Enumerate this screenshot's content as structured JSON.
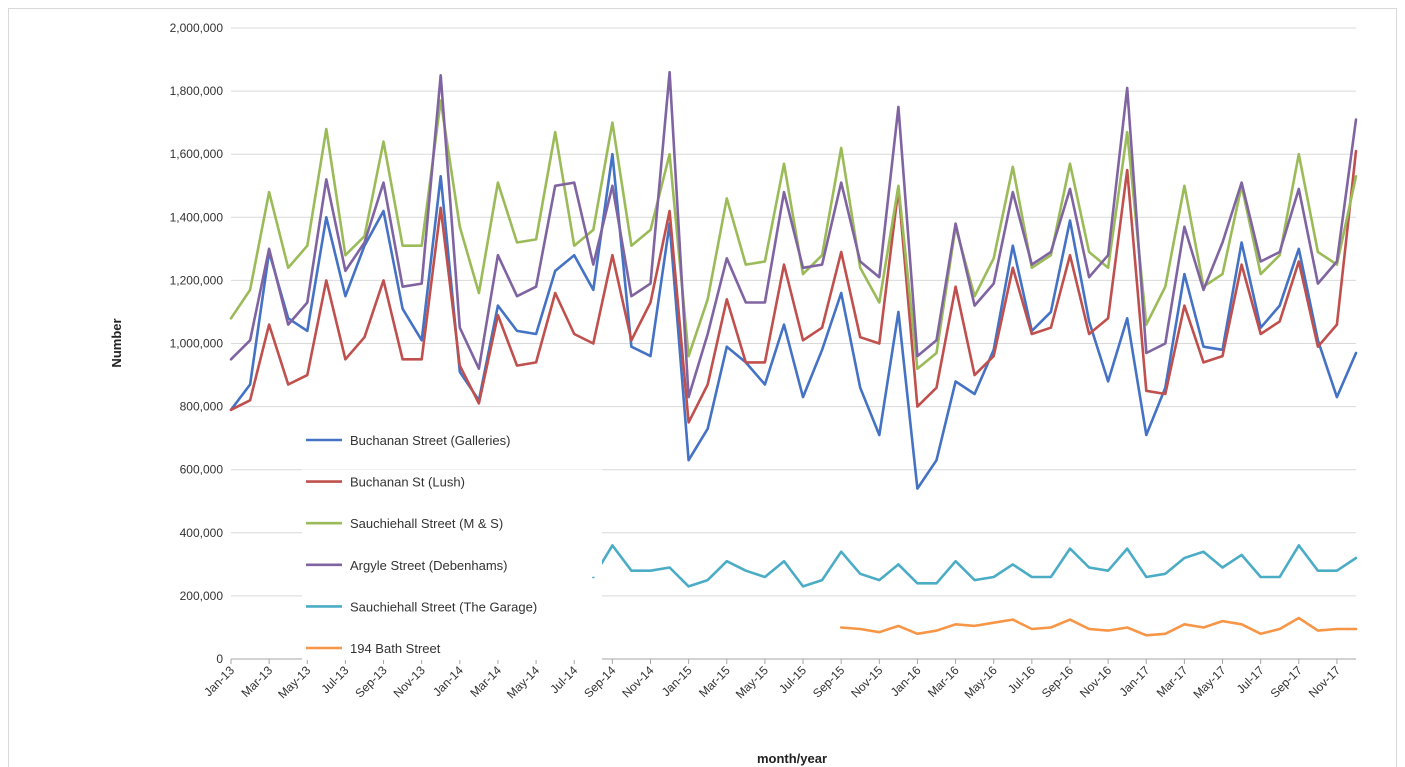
{
  "chart_data": {
    "type": "line",
    "title": "",
    "xlabel": "month/year",
    "ylabel": "Number",
    "ylim": [
      0,
      2000000
    ],
    "yticks": [
      "0",
      "200,000",
      "400,000",
      "600,000",
      "800,000",
      "1,000,000",
      "1,200,000",
      "1,400,000",
      "1,600,000",
      "1,800,000",
      "2,000,000"
    ],
    "categories": [
      "Jan-13",
      "Feb-13",
      "Mar-13",
      "Apr-13",
      "May-13",
      "Jun-13",
      "Jul-13",
      "Aug-13",
      "Sep-13",
      "Oct-13",
      "Nov-13",
      "Dec-13",
      "Jan-14",
      "Feb-14",
      "Mar-14",
      "Apr-14",
      "May-14",
      "Jun-14",
      "Jul-14",
      "Aug-14",
      "Sep-14",
      "Oct-14",
      "Nov-14",
      "Dec-14",
      "Jan-15",
      "Feb-15",
      "Mar-15",
      "Apr-15",
      "May-15",
      "Jun-15",
      "Jul-15",
      "Aug-15",
      "Sep-15",
      "Oct-15",
      "Nov-15",
      "Dec-15",
      "Jan-16",
      "Feb-16",
      "Mar-16",
      "Apr-16",
      "May-16",
      "Jun-16",
      "Jul-16",
      "Aug-16",
      "Sep-16",
      "Oct-16",
      "Nov-16",
      "Dec-16",
      "Jan-17",
      "Feb-17",
      "Mar-17",
      "Apr-17",
      "May-17",
      "Jun-17",
      "Jul-17",
      "Aug-17",
      "Sep-17",
      "Oct-17",
      "Nov-17",
      "Dec-17"
    ],
    "tick_labels_shown": [
      "Jan-13",
      "Mar-13",
      "May-13",
      "Jul-13",
      "Sep-13",
      "Nov-13",
      "Jan-14",
      "Mar-14",
      "May-14",
      "Jul-14",
      "Sep-14",
      "Nov-14",
      "Jan-15",
      "Mar-15",
      "May-15",
      "Jul-15",
      "Sep-15",
      "Nov-15",
      "Jan-16",
      "Mar-16",
      "May-16",
      "Jul-16",
      "Sep-16",
      "Nov-16",
      "Jan-17",
      "Mar-17",
      "May-17",
      "Jul-17",
      "Sep-17",
      "Nov-17"
    ],
    "grid": true,
    "legend_position": "inside-lower-left",
    "series": [
      {
        "name": "Buchanan Street (Galleries)",
        "color": "#4472c4",
        "values": [
          790000,
          870000,
          1290000,
          1080000,
          1040000,
          1400000,
          1150000,
          1310000,
          1420000,
          1110000,
          1010000,
          1530000,
          910000,
          820000,
          1120000,
          1040000,
          1030000,
          1230000,
          1280000,
          1170000,
          1600000,
          990000,
          960000,
          1380000,
          630000,
          730000,
          990000,
          940000,
          870000,
          1060000,
          830000,
          980000,
          1160000,
          860000,
          710000,
          1100000,
          540000,
          630000,
          880000,
          840000,
          980000,
          1310000,
          1040000,
          1100000,
          1390000,
          1070000,
          880000,
          1080000,
          710000,
          860000,
          1220000,
          990000,
          980000,
          1320000,
          1050000,
          1120000,
          1300000,
          1010000,
          830000,
          970000
        ]
      },
      {
        "name": "Buchanan St (Lush)",
        "color": "#c0504d",
        "values": [
          790000,
          820000,
          1060000,
          870000,
          900000,
          1200000,
          950000,
          1020000,
          1200000,
          950000,
          950000,
          1430000,
          930000,
          810000,
          1090000,
          930000,
          940000,
          1160000,
          1030000,
          1000000,
          1280000,
          1010000,
          1130000,
          1420000,
          750000,
          870000,
          1140000,
          940000,
          940000,
          1250000,
          1010000,
          1050000,
          1290000,
          1020000,
          1000000,
          1490000,
          800000,
          860000,
          1180000,
          900000,
          960000,
          1240000,
          1030000,
          1050000,
          1280000,
          1030000,
          1080000,
          1550000,
          850000,
          840000,
          1120000,
          940000,
          960000,
          1250000,
          1030000,
          1070000,
          1260000,
          990000,
          1060000,
          1610000
        ]
      },
      {
        "name": "Sauchiehall Street (M & S)",
        "color": "#9bbb59",
        "values": [
          1080000,
          1170000,
          1480000,
          1240000,
          1310000,
          1680000,
          1280000,
          1340000,
          1640000,
          1310000,
          1310000,
          1770000,
          1370000,
          1160000,
          1510000,
          1320000,
          1330000,
          1670000,
          1310000,
          1360000,
          1700000,
          1310000,
          1360000,
          1600000,
          960000,
          1140000,
          1460000,
          1250000,
          1260000,
          1570000,
          1220000,
          1280000,
          1620000,
          1240000,
          1130000,
          1500000,
          920000,
          970000,
          1370000,
          1150000,
          1270000,
          1560000,
          1240000,
          1280000,
          1570000,
          1290000,
          1240000,
          1670000,
          1060000,
          1180000,
          1500000,
          1180000,
          1220000,
          1500000,
          1220000,
          1280000,
          1600000,
          1290000,
          1250000,
          1530000
        ]
      },
      {
        "name": "Argyle Street (Debenhams)",
        "color": "#8064a2",
        "values": [
          950000,
          1010000,
          1300000,
          1060000,
          1130000,
          1520000,
          1230000,
          1320000,
          1510000,
          1180000,
          1190000,
          1850000,
          1050000,
          920000,
          1280000,
          1150000,
          1180000,
          1500000,
          1510000,
          1250000,
          1500000,
          1150000,
          1190000,
          1860000,
          830000,
          1030000,
          1270000,
          1130000,
          1130000,
          1480000,
          1240000,
          1250000,
          1510000,
          1260000,
          1210000,
          1750000,
          960000,
          1010000,
          1380000,
          1120000,
          1190000,
          1480000,
          1250000,
          1290000,
          1490000,
          1210000,
          1280000,
          1810000,
          970000,
          1000000,
          1370000,
          1170000,
          1320000,
          1510000,
          1260000,
          1290000,
          1490000,
          1190000,
          1260000,
          1710000
        ]
      },
      {
        "name": "Sauchiehall Street (The Garage)",
        "color": "#4bacc6",
        "values": [
          null,
          null,
          null,
          null,
          null,
          null,
          null,
          null,
          null,
          null,
          null,
          null,
          null,
          null,
          null,
          null,
          null,
          null,
          null,
          260000,
          360000,
          280000,
          280000,
          290000,
          230000,
          250000,
          310000,
          280000,
          260000,
          310000,
          230000,
          250000,
          340000,
          270000,
          250000,
          300000,
          240000,
          240000,
          310000,
          250000,
          260000,
          300000,
          260000,
          260000,
          350000,
          290000,
          280000,
          350000,
          260000,
          270000,
          320000,
          340000,
          290000,
          330000,
          260000,
          260000,
          360000,
          280000,
          280000,
          320000
        ]
      },
      {
        "name": "194 Bath Street",
        "color": "#f79646",
        "values": [
          null,
          null,
          null,
          null,
          null,
          null,
          null,
          null,
          null,
          null,
          null,
          null,
          null,
          null,
          null,
          null,
          null,
          null,
          null,
          null,
          null,
          null,
          null,
          null,
          null,
          null,
          null,
          null,
          null,
          null,
          null,
          null,
          100000,
          95000,
          85000,
          105000,
          80000,
          90000,
          110000,
          105000,
          115000,
          125000,
          95000,
          100000,
          125000,
          95000,
          90000,
          100000,
          75000,
          80000,
          110000,
          100000,
          120000,
          110000,
          80000,
          95000,
          130000,
          90000,
          95000,
          95000
        ]
      }
    ]
  }
}
